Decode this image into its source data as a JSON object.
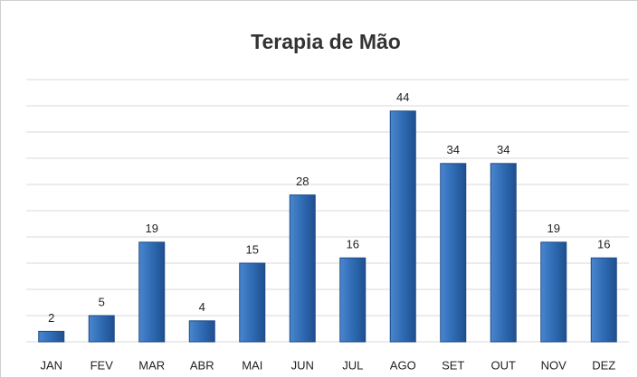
{
  "chart_data": {
    "type": "bar",
    "title": "Terapia de Mão",
    "categories": [
      "JAN",
      "FEV",
      "MAR",
      "ABR",
      "MAI",
      "JUN",
      "JUL",
      "AGO",
      "SET",
      "OUT",
      "NOV",
      "DEZ"
    ],
    "values": [
      2,
      5,
      19,
      4,
      15,
      28,
      16,
      44,
      34,
      34,
      19,
      16
    ],
    "color": "#2f6bb3",
    "ylim": [
      0,
      50
    ],
    "yticks": [
      0,
      5,
      10,
      15,
      20,
      25,
      30,
      35,
      40,
      45,
      50
    ],
    "grid": true
  }
}
